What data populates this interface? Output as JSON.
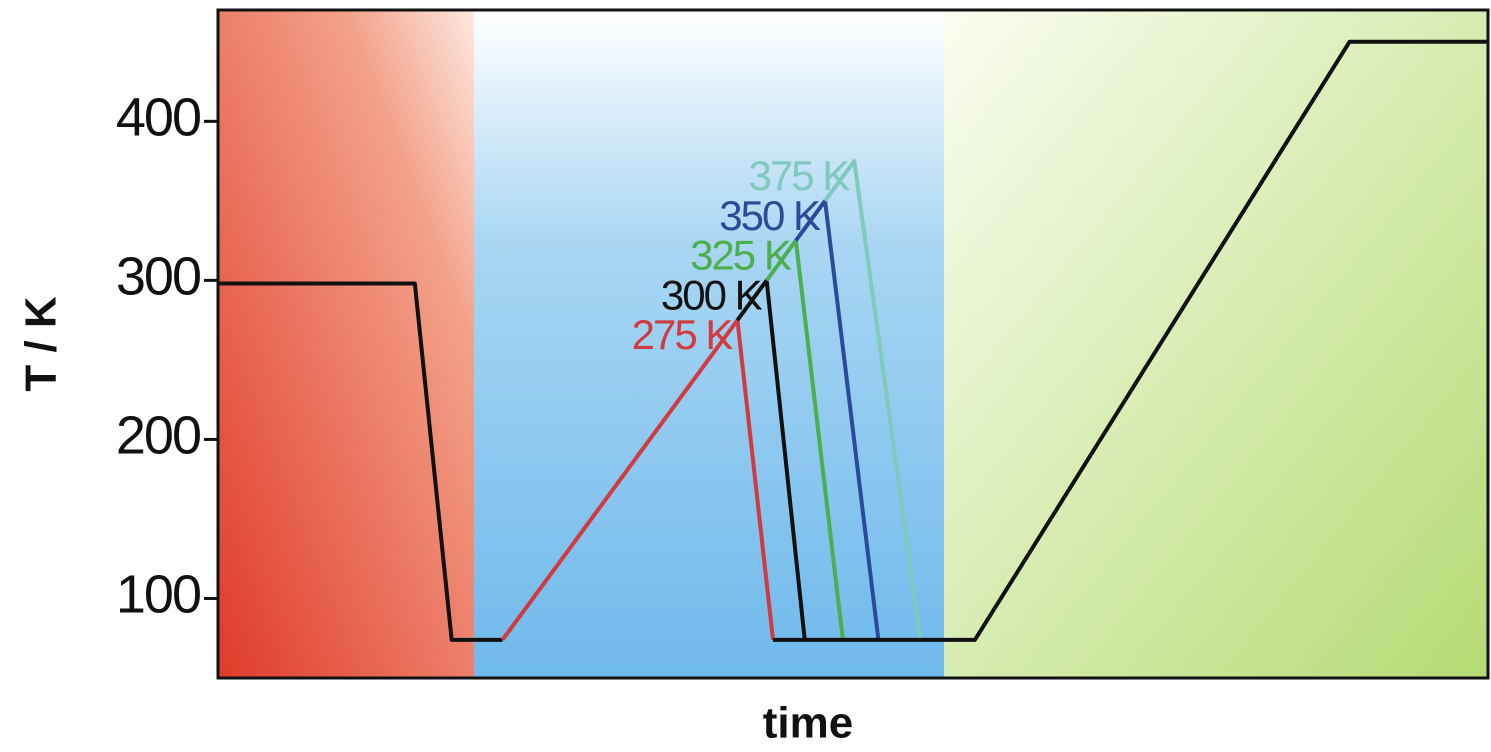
{
  "chart_data": {
    "type": "line",
    "xlabel": "time",
    "ylabel": "T / K",
    "xlim": [
      0,
      100
    ],
    "ylim": [
      50,
      470
    ],
    "yticks": [
      100,
      200,
      300,
      400
    ],
    "series": [
      {
        "color": "#111111",
        "x": [
          0,
          15.5,
          18.4,
          22.4
        ],
        "values": [
          298,
          298,
          74,
          74
        ]
      },
      {
        "name": "275 K",
        "color": "#d13b40",
        "x": [
          22.4,
          40.9,
          43.7
        ],
        "values": [
          74,
          275,
          74
        ]
      },
      {
        "name": "300 K",
        "color": "#111111",
        "x": [
          40.9,
          43.2,
          46.2
        ],
        "values": [
          275,
          300,
          74
        ]
      },
      {
        "name": "325 K",
        "color": "#4cae4c",
        "x": [
          43.2,
          45.5,
          49.2
        ],
        "values": [
          300,
          325,
          74
        ]
      },
      {
        "name": "350 K",
        "color": "#2b4a9a",
        "x": [
          45.5,
          47.8,
          52.0
        ],
        "values": [
          325,
          350,
          74
        ]
      },
      {
        "name": "375 K",
        "color": "#7fc9bd",
        "x": [
          47.8,
          50.1,
          55.3
        ],
        "values": [
          350,
          375,
          74
        ]
      },
      {
        "color": "#111111",
        "x": [
          43.7,
          59.6,
          89.1,
          100
        ],
        "values": [
          74,
          74,
          450,
          450
        ]
      }
    ]
  }
}
